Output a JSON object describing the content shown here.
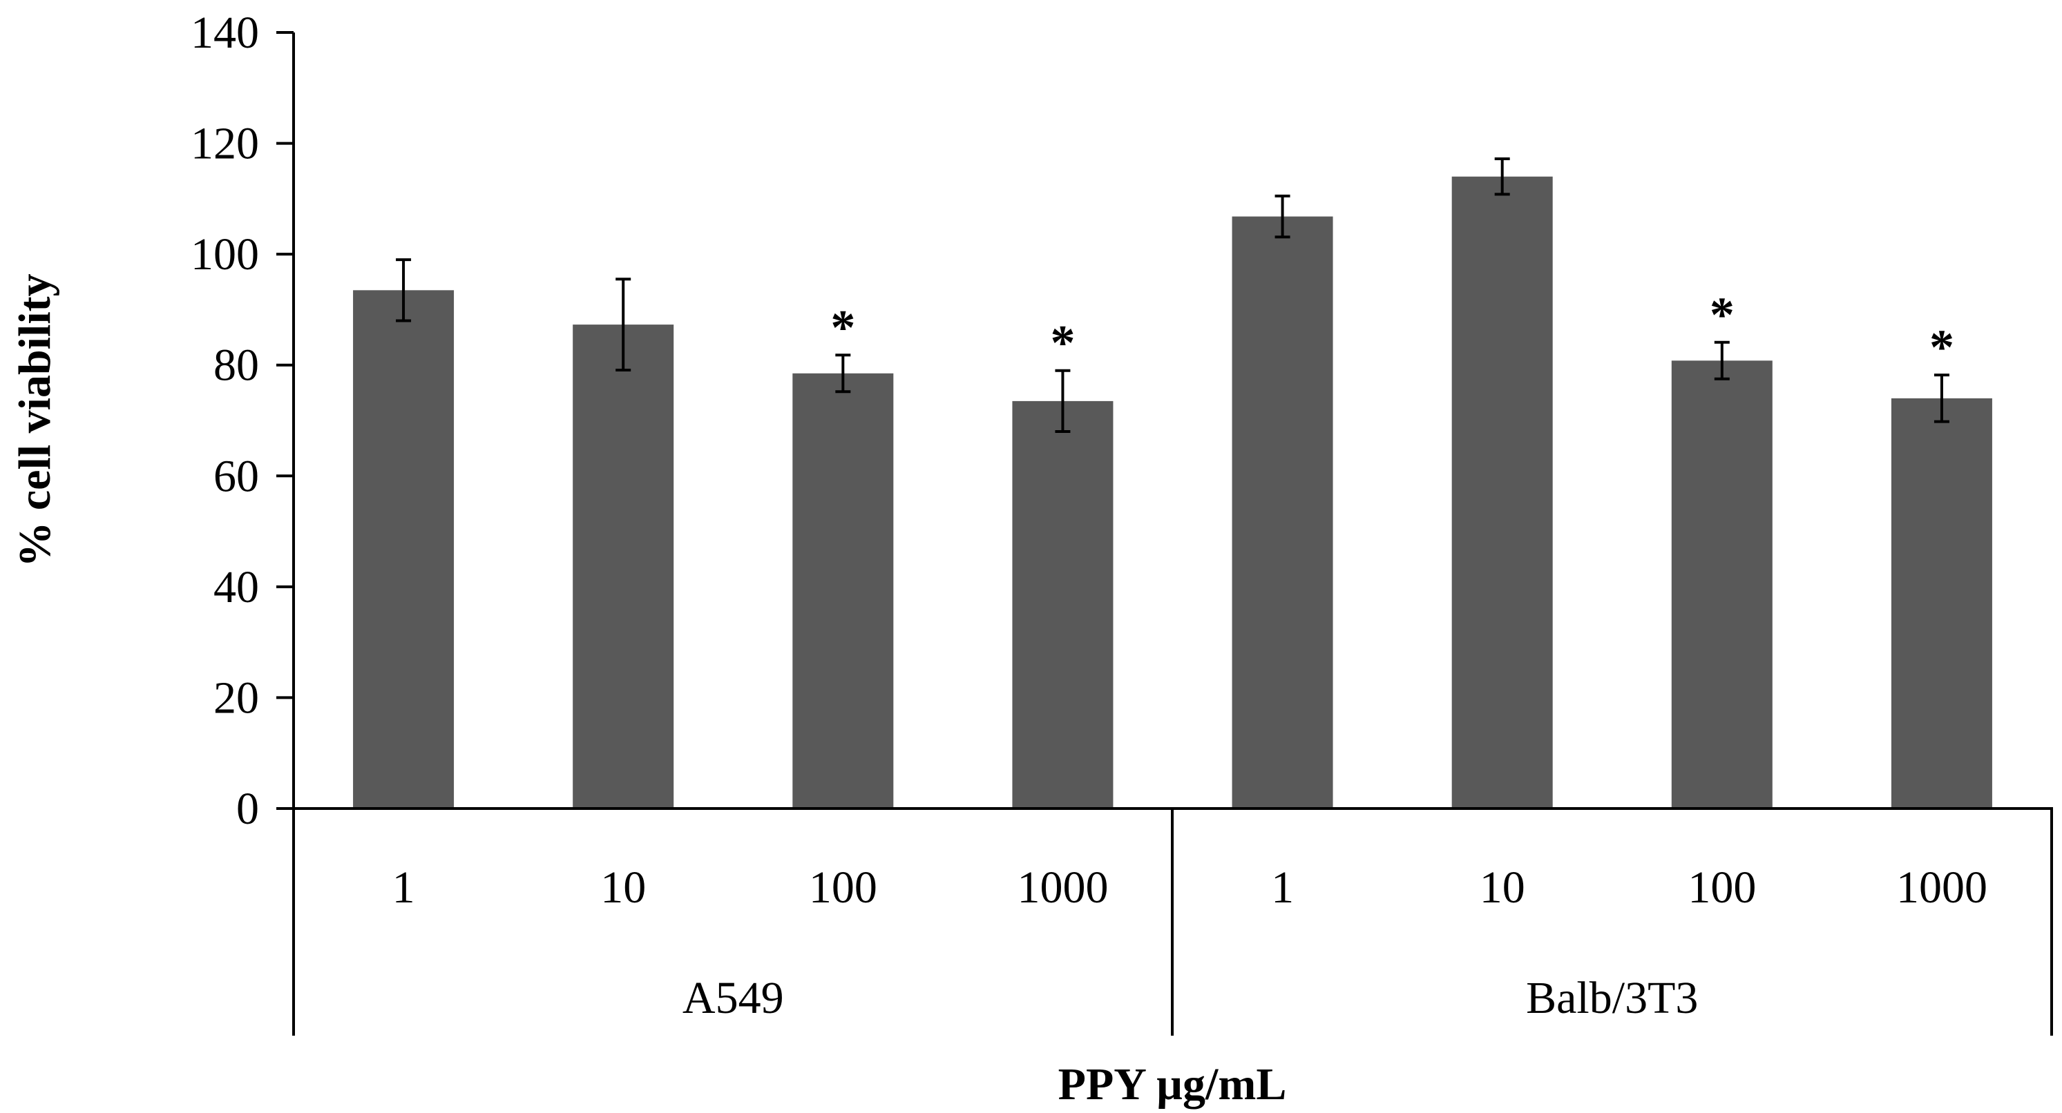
{
  "chart_data": {
    "type": "bar",
    "title": "",
    "xlabel": "PPY µg/mL",
    "ylabel": "% cell viability",
    "ylim": [
      0,
      140
    ],
    "yticks": [
      0,
      20,
      40,
      60,
      80,
      100,
      120,
      140
    ],
    "grid": false,
    "legend": "none",
    "bar_color": "#595959",
    "groups": [
      {
        "name": "A549",
        "categories": [
          "1",
          "10",
          "100",
          "1000"
        ],
        "values": [
          93.5,
          87.3,
          78.5,
          73.5
        ],
        "errors": [
          5.5,
          8.2,
          3.3,
          5.5
        ],
        "significance": [
          "",
          "",
          "*",
          "*"
        ]
      },
      {
        "name": "Balb/3T3",
        "categories": [
          "1",
          "10",
          "100",
          "1000"
        ],
        "values": [
          106.8,
          114.0,
          80.8,
          74.0
        ],
        "errors": [
          3.7,
          3.2,
          3.3,
          4.2
        ],
        "significance": [
          "",
          "",
          "*",
          "*"
        ]
      }
    ]
  }
}
